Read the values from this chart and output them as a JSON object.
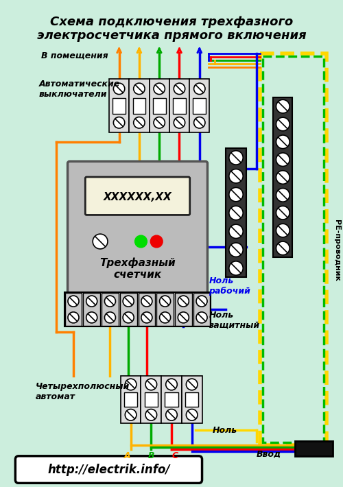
{
  "title_line1": "Схема подключения трехфазного",
  "title_line2": "электросчетчика прямого включения",
  "bg_color": "#cceedd",
  "label_v_pomesh": "В помещения",
  "label_avt": "Автоматические\nвыключатели",
  "label_schetchik_display": "XXXXXX,XX",
  "label_schetchik": "Трехфазный\nсчетчик",
  "label_4pole": "Четырехполюсный\nавтомат",
  "label_nol_rab": "Ноль\nрабочий",
  "label_nol_zash": "Ноль\nзащитный",
  "label_nol": "Ноль",
  "label_vvod": "Ввод",
  "label_re": "РЕ-проводник",
  "label_url": "http://electrik.info/",
  "label_A": "A",
  "label_B": "B",
  "label_C": "C",
  "wire_yellow": "#FFB300",
  "wire_green": "#00AA00",
  "wire_red": "#FF0000",
  "wire_blue": "#0000EE",
  "wire_orange": "#FF8000",
  "pe_yellow": "#FFD700",
  "pe_green": "#00BB00"
}
